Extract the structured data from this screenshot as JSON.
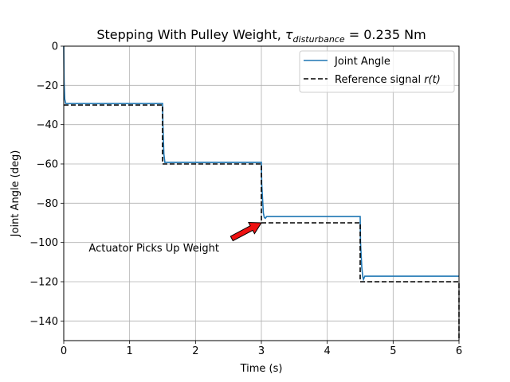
{
  "chart_data": {
    "type": "line",
    "title": "Stepping With Pulley Weight, ",
    "title_math": {
      "tau": "τ",
      "subscript": "disturbance",
      "value": " = 0.235 Nm"
    },
    "xlabel": "Time (s)",
    "ylabel": "Joint Angle (deg)",
    "xlim": [
      0,
      6
    ],
    "ylim": [
      -150,
      0
    ],
    "xticks": [
      0,
      1,
      2,
      3,
      4,
      5,
      6
    ],
    "yticks": [
      0,
      -20,
      -40,
      -60,
      -80,
      -100,
      -120,
      -140
    ],
    "xtick_labels": [
      "0",
      "1",
      "2",
      "3",
      "4",
      "5",
      "6"
    ],
    "ytick_labels": [
      "0",
      "−20",
      "−40",
      "−60",
      "−80",
      "−100",
      "−120",
      "−140"
    ],
    "grid": true,
    "legend_position": "top-right",
    "series": [
      {
        "name": "Joint Angle",
        "color": "#1f77b4",
        "style": "solid",
        "points": [
          [
            0,
            0
          ],
          [
            0.005,
            -18
          ],
          [
            0.015,
            -27
          ],
          [
            0.03,
            -29.2
          ],
          [
            1.5,
            -29.2
          ],
          [
            1.505,
            -40
          ],
          [
            1.52,
            -55
          ],
          [
            1.535,
            -59.2
          ],
          [
            3.0,
            -59.2
          ],
          [
            3.005,
            -70
          ],
          [
            3.03,
            -85
          ],
          [
            3.045,
            -87.3
          ],
          [
            3.06,
            -87.7
          ],
          [
            3.08,
            -86.8
          ],
          [
            4.5,
            -86.8
          ],
          [
            4.505,
            -100
          ],
          [
            4.525,
            -113
          ],
          [
            4.54,
            -117.6
          ],
          [
            4.55,
            -118.8
          ],
          [
            4.57,
            -117.2
          ],
          [
            6.0,
            -117.2
          ]
        ]
      },
      {
        "name": "Reference signal ",
        "name_math": "r(t)",
        "color": "#000000",
        "style": "dashed",
        "points": [
          [
            0,
            -30
          ],
          [
            1.5,
            -30
          ],
          [
            1.5,
            -60
          ],
          [
            3.0,
            -60
          ],
          [
            3.0,
            -90
          ],
          [
            4.5,
            -90
          ],
          [
            4.5,
            -120
          ],
          [
            6.0,
            -120
          ],
          [
            6.0,
            -150
          ]
        ]
      }
    ],
    "annotation": {
      "text": "Actuator Picks Up Weight",
      "text_at": [
        0.38,
        -103
      ],
      "arrow_from": [
        2.55,
        -98
      ],
      "arrow_to": [
        3.0,
        -90
      ],
      "arrow_color": "#ee1111"
    }
  }
}
